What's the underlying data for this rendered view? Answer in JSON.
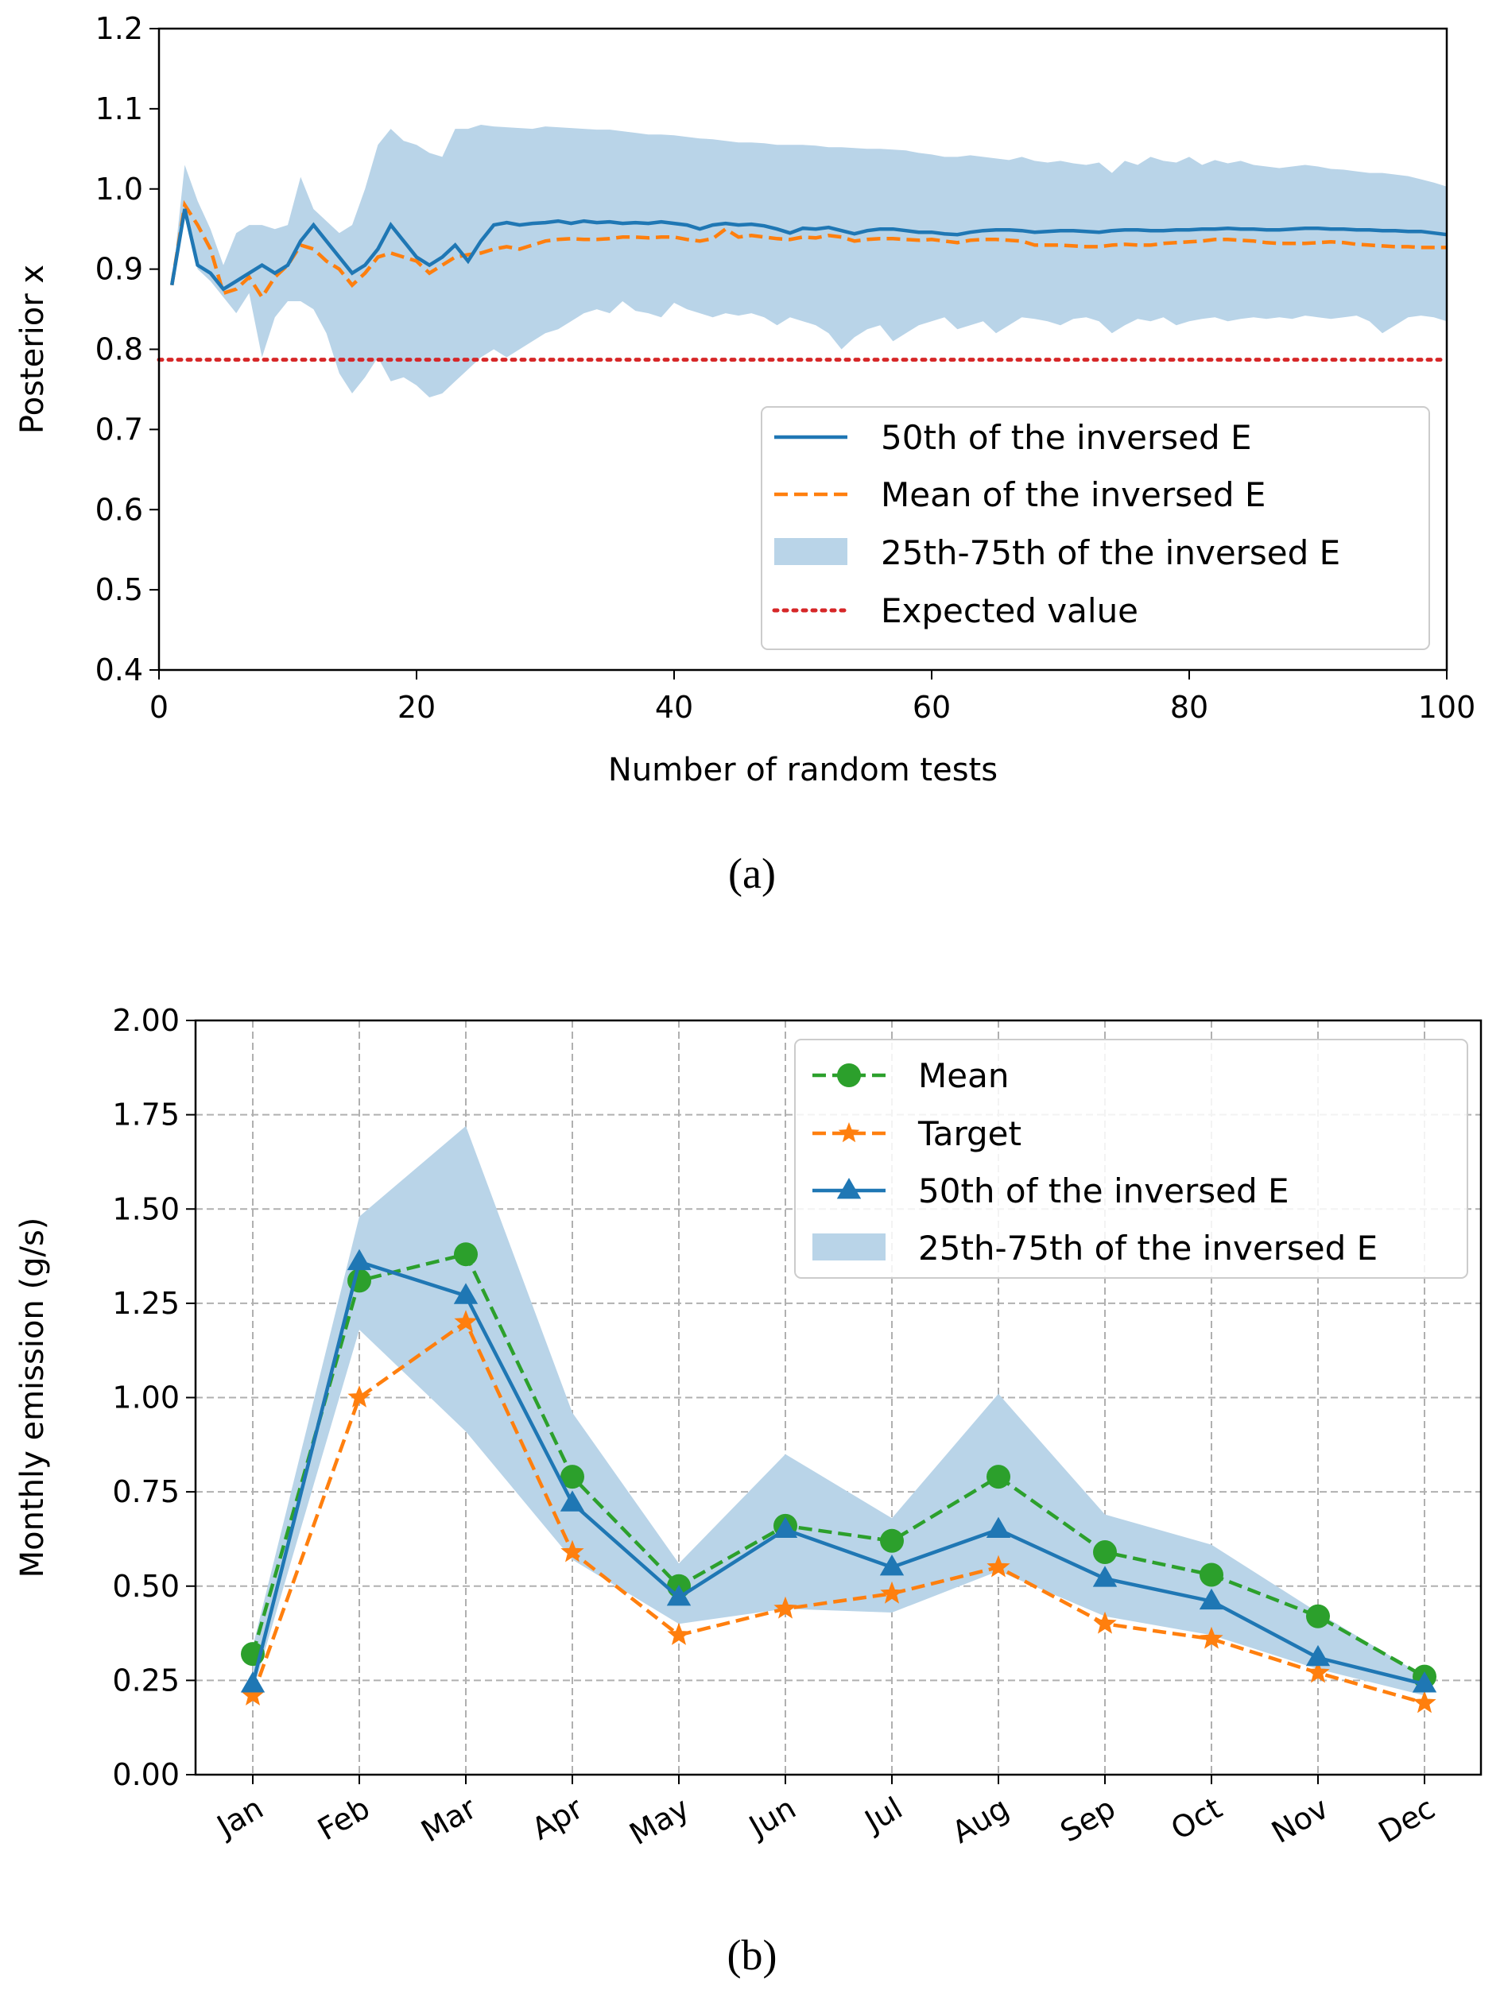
{
  "colors": {
    "blue": "#1f77b4",
    "orange": "#ff7f0e",
    "green": "#2ca02c",
    "red": "#d62728",
    "band": "#b9d4e8",
    "grid": "#b0b0b0"
  },
  "chart_data": [
    {
      "panel": "(a)",
      "caption": "(a)",
      "type": "line",
      "xlabel": "Number of random tests",
      "ylabel": "Posterior x",
      "xlim": [
        0,
        100
      ],
      "ylim": [
        0.4,
        1.2
      ],
      "xticks": [
        "0",
        "20",
        "40",
        "60",
        "80",
        "100"
      ],
      "yticks": [
        "0.4",
        "0.5",
        "0.6",
        "0.7",
        "0.8",
        "0.9",
        "1.0",
        "1.1",
        "1.2"
      ],
      "grid": false,
      "legend_position": "lower-right",
      "x": [
        1,
        2,
        3,
        4,
        5,
        6,
        7,
        8,
        9,
        10,
        11,
        12,
        13,
        14,
        15,
        16,
        17,
        18,
        19,
        20,
        21,
        22,
        23,
        24,
        25,
        26,
        27,
        28,
        29,
        30,
        31,
        32,
        33,
        34,
        35,
        36,
        37,
        38,
        39,
        40,
        41,
        42,
        43,
        44,
        45,
        46,
        47,
        48,
        49,
        50,
        51,
        52,
        53,
        54,
        55,
        56,
        57,
        58,
        59,
        60,
        61,
        62,
        63,
        64,
        65,
        66,
        67,
        68,
        69,
        70,
        71,
        72,
        73,
        74,
        75,
        76,
        77,
        78,
        79,
        80,
        81,
        82,
        83,
        84,
        85,
        86,
        87,
        88,
        89,
        90,
        91,
        92,
        93,
        94,
        95,
        96,
        97,
        98,
        99,
        100
      ],
      "series": [
        {
          "name": "50th of the inversed E",
          "style": "solid",
          "values": [
            0.88,
            0.975,
            0.905,
            0.895,
            0.875,
            0.885,
            0.895,
            0.905,
            0.895,
            0.905,
            0.935,
            0.955,
            0.935,
            0.915,
            0.895,
            0.905,
            0.925,
            0.955,
            0.935,
            0.915,
            0.905,
            0.915,
            0.93,
            0.91,
            0.935,
            0.955,
            0.958,
            0.955,
            0.957,
            0.958,
            0.96,
            0.957,
            0.96,
            0.958,
            0.959,
            0.957,
            0.958,
            0.957,
            0.959,
            0.957,
            0.955,
            0.95,
            0.955,
            0.957,
            0.955,
            0.956,
            0.954,
            0.95,
            0.945,
            0.951,
            0.95,
            0.952,
            0.948,
            0.944,
            0.948,
            0.95,
            0.95,
            0.948,
            0.946,
            0.946,
            0.944,
            0.943,
            0.946,
            0.948,
            0.949,
            0.949,
            0.948,
            0.946,
            0.947,
            0.948,
            0.948,
            0.947,
            0.946,
            0.948,
            0.949,
            0.949,
            0.948,
            0.948,
            0.949,
            0.949,
            0.95,
            0.95,
            0.951,
            0.95,
            0.95,
            0.949,
            0.949,
            0.95,
            0.951,
            0.951,
            0.95,
            0.95,
            0.949,
            0.949,
            0.948,
            0.948,
            0.947,
            0.947,
            0.945,
            0.943
          ]
        },
        {
          "name": "Mean of the inversed E",
          "style": "dashed",
          "values": [
            0.88,
            0.98,
            0.955,
            0.925,
            0.87,
            0.875,
            0.89,
            0.865,
            0.89,
            0.905,
            0.93,
            0.925,
            0.91,
            0.9,
            0.88,
            0.895,
            0.915,
            0.92,
            0.915,
            0.91,
            0.895,
            0.905,
            0.915,
            0.918,
            0.92,
            0.925,
            0.928,
            0.925,
            0.93,
            0.935,
            0.937,
            0.938,
            0.937,
            0.937,
            0.938,
            0.94,
            0.94,
            0.939,
            0.94,
            0.94,
            0.937,
            0.935,
            0.938,
            0.95,
            0.94,
            0.942,
            0.94,
            0.938,
            0.937,
            0.94,
            0.939,
            0.942,
            0.94,
            0.935,
            0.937,
            0.938,
            0.938,
            0.937,
            0.936,
            0.937,
            0.935,
            0.933,
            0.936,
            0.937,
            0.937,
            0.936,
            0.935,
            0.93,
            0.93,
            0.93,
            0.929,
            0.928,
            0.928,
            0.93,
            0.931,
            0.93,
            0.93,
            0.932,
            0.933,
            0.934,
            0.935,
            0.937,
            0.937,
            0.936,
            0.935,
            0.933,
            0.932,
            0.932,
            0.932,
            0.933,
            0.934,
            0.933,
            0.931,
            0.93,
            0.929,
            0.928,
            0.928,
            0.927,
            0.927,
            0.927
          ]
        },
        {
          "name": "25th-75th of the inversed E",
          "style": "band",
          "lower": [
            0.88,
            0.97,
            0.9,
            0.885,
            0.865,
            0.845,
            0.87,
            0.79,
            0.84,
            0.86,
            0.86,
            0.85,
            0.82,
            0.77,
            0.745,
            0.765,
            0.79,
            0.76,
            0.765,
            0.755,
            0.74,
            0.745,
            0.76,
            0.775,
            0.79,
            0.8,
            0.79,
            0.8,
            0.81,
            0.82,
            0.825,
            0.835,
            0.845,
            0.85,
            0.845,
            0.86,
            0.848,
            0.845,
            0.84,
            0.858,
            0.85,
            0.845,
            0.84,
            0.845,
            0.842,
            0.845,
            0.84,
            0.83,
            0.84,
            0.835,
            0.83,
            0.82,
            0.8,
            0.815,
            0.825,
            0.83,
            0.81,
            0.82,
            0.83,
            0.835,
            0.84,
            0.825,
            0.83,
            0.835,
            0.82,
            0.83,
            0.84,
            0.838,
            0.835,
            0.83,
            0.838,
            0.84,
            0.835,
            0.82,
            0.83,
            0.838,
            0.835,
            0.84,
            0.83,
            0.835,
            0.838,
            0.84,
            0.835,
            0.838,
            0.84,
            0.838,
            0.84,
            0.838,
            0.842,
            0.84,
            0.838,
            0.84,
            0.842,
            0.835,
            0.82,
            0.83,
            0.84,
            0.842,
            0.84,
            0.835
          ],
          "upper": [
            0.88,
            1.03,
            0.985,
            0.95,
            0.905,
            0.945,
            0.955,
            0.955,
            0.95,
            0.955,
            1.015,
            0.975,
            0.96,
            0.945,
            0.955,
            1.0,
            1.055,
            1.075,
            1.06,
            1.055,
            1.045,
            1.04,
            1.075,
            1.075,
            1.08,
            1.078,
            1.077,
            1.076,
            1.075,
            1.078,
            1.077,
            1.076,
            1.075,
            1.074,
            1.074,
            1.072,
            1.07,
            1.068,
            1.068,
            1.067,
            1.065,
            1.063,
            1.062,
            1.06,
            1.058,
            1.058,
            1.057,
            1.055,
            1.055,
            1.055,
            1.054,
            1.052,
            1.052,
            1.051,
            1.05,
            1.05,
            1.049,
            1.048,
            1.045,
            1.043,
            1.04,
            1.04,
            1.042,
            1.04,
            1.038,
            1.036,
            1.04,
            1.035,
            1.033,
            1.035,
            1.032,
            1.03,
            1.033,
            1.02,
            1.035,
            1.03,
            1.04,
            1.035,
            1.033,
            1.04,
            1.03,
            1.036,
            1.032,
            1.035,
            1.03,
            1.028,
            1.026,
            1.028,
            1.03,
            1.028,
            1.025,
            1.024,
            1.022,
            1.02,
            1.02,
            1.018,
            1.016,
            1.012,
            1.008,
            1.003
          ]
        },
        {
          "name": "Expected value",
          "style": "dotted",
          "constant": 0.787
        }
      ]
    },
    {
      "panel": "(b)",
      "caption": "(b)",
      "type": "line",
      "xlabel": "",
      "ylabel": "Monthly emission (g/s)",
      "ylim": [
        0.0,
        2.0
      ],
      "yticks": [
        "0.00",
        "0.25",
        "0.50",
        "0.75",
        "1.00",
        "1.25",
        "1.50",
        "1.75",
        "2.00"
      ],
      "grid": true,
      "legend_position": "upper-right",
      "categories": [
        "Jan",
        "Feb",
        "Mar",
        "Apr",
        "May",
        "Jun",
        "Jul",
        "Aug",
        "Sep",
        "Oct",
        "Nov",
        "Dec"
      ],
      "series": [
        {
          "name": "Mean",
          "style": "dashed",
          "marker": "circle",
          "values": [
            0.32,
            1.31,
            1.38,
            0.79,
            0.5,
            0.66,
            0.62,
            0.79,
            0.59,
            0.53,
            0.42,
            0.26
          ]
        },
        {
          "name": "Target",
          "style": "dashed",
          "marker": "star",
          "values": [
            0.21,
            1.0,
            1.2,
            0.59,
            0.37,
            0.44,
            0.48,
            0.55,
            0.4,
            0.36,
            0.27,
            0.19
          ]
        },
        {
          "name": "50th of the inversed E",
          "style": "solid",
          "marker": "triangle",
          "values": [
            0.24,
            1.36,
            1.27,
            0.72,
            0.47,
            0.65,
            0.55,
            0.65,
            0.52,
            0.46,
            0.31,
            0.24
          ]
        },
        {
          "name": "25th-75th of the inversed E",
          "style": "band",
          "lower": [
            0.22,
            1.18,
            0.91,
            0.57,
            0.4,
            0.44,
            0.43,
            0.54,
            0.42,
            0.37,
            0.28,
            0.21
          ],
          "upper": [
            0.34,
            1.48,
            1.72,
            0.96,
            0.56,
            0.85,
            0.68,
            1.01,
            0.69,
            0.61,
            0.43,
            0.26
          ]
        }
      ]
    }
  ]
}
